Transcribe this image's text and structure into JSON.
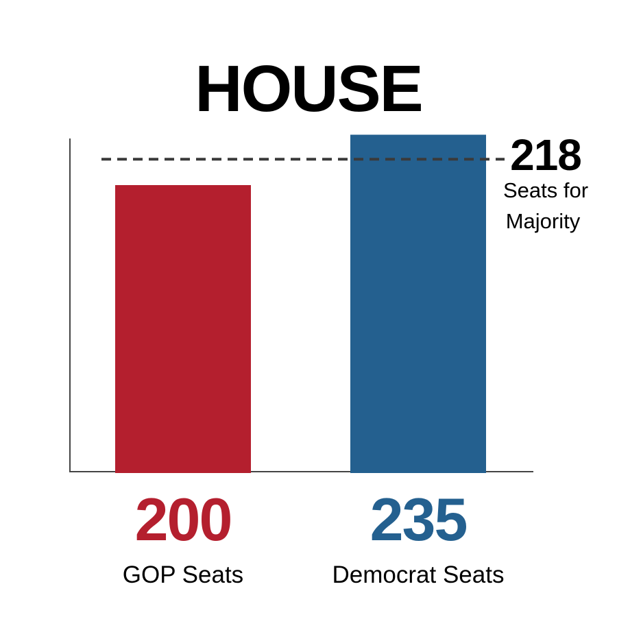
{
  "chart_data": {
    "type": "bar",
    "title": "HOUSE",
    "categories": [
      "GOP Seats",
      "Democrat Seats"
    ],
    "values": [
      200,
      235
    ],
    "value_labels": [
      "200",
      "235"
    ],
    "colors": [
      "#B41F2E",
      "#24608F"
    ],
    "ylim": [
      0,
      240
    ],
    "xlabel": "",
    "ylabel": "",
    "grid": false,
    "reference_line": {
      "value": 218,
      "label_value": "218",
      "label_line1": "Seats for",
      "label_line2": "Majority",
      "style": "dashed",
      "color": "#3A3A3A"
    }
  }
}
